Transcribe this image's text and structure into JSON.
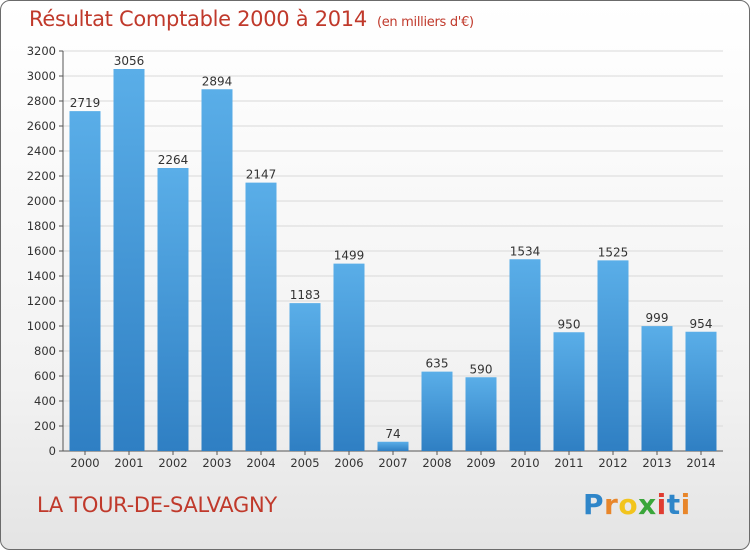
{
  "title": "Résultat Comptable 2000 à 2014",
  "unit": "(en milliers d'€)",
  "commune": "LA TOUR-DE-SALVAGNY",
  "logo_text": "Proxiti",
  "colors": {
    "title": "#c0392b",
    "bar_top": "#5aaee8",
    "bar_bottom": "#2f7fc3",
    "logo": [
      "#2f86c9",
      "#e8862a",
      "#f2c41d",
      "#3aa63a",
      "#e03c31",
      "#2f86c9",
      "#e8862a"
    ]
  },
  "chart_data": {
    "type": "bar",
    "title": "Résultat Comptable 2000 à 2014",
    "unit": "(en milliers d'€)",
    "xlabel": "",
    "ylabel": "",
    "categories": [
      "2000",
      "2001",
      "2002",
      "2003",
      "2004",
      "2005",
      "2006",
      "2007",
      "2008",
      "2009",
      "2010",
      "2011",
      "2012",
      "2013",
      "2014"
    ],
    "values": [
      2719,
      3056,
      2264,
      2894,
      2147,
      1183,
      1499,
      74,
      635,
      590,
      1534,
      950,
      1525,
      999,
      954
    ],
    "yticks": [
      0,
      200,
      400,
      600,
      800,
      1000,
      1200,
      1400,
      1600,
      1800,
      2000,
      2200,
      2400,
      2600,
      2800,
      3000,
      3200
    ],
    "ylim": [
      0,
      3200
    ],
    "grid": true,
    "data_labels": true
  }
}
